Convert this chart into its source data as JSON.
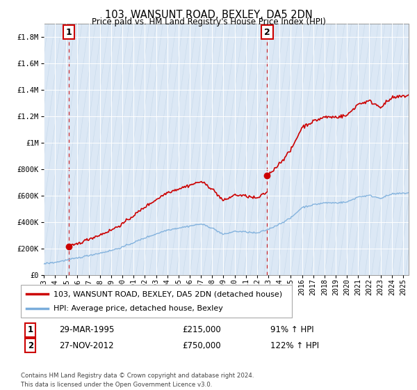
{
  "title": "103, WANSUNT ROAD, BEXLEY, DA5 2DN",
  "subtitle": "Price paid vs. HM Land Registry's House Price Index (HPI)",
  "legend_line1": "103, WANSUNT ROAD, BEXLEY, DA5 2DN (detached house)",
  "legend_line2": "HPI: Average price, detached house, Bexley",
  "ann1_label": "1",
  "ann1_date": "29-MAR-1995",
  "ann1_price": "£215,000",
  "ann1_hpi": "91% ↑ HPI",
  "ann1_x": 1995.23,
  "ann1_y": 215000,
  "ann2_label": "2",
  "ann2_date": "27-NOV-2012",
  "ann2_price": "£750,000",
  "ann2_hpi": "122% ↑ HPI",
  "ann2_x": 2012.9,
  "ann2_y": 750000,
  "red_color": "#cc0000",
  "blue_color": "#7aaddb",
  "bg_color": "#dce8f5",
  "hatch_color": "#c5d8ea",
  "grid_color": "#b0c4d8",
  "ylim_max": 1900000,
  "ylim_min": 0,
  "xlim_min": 1993.0,
  "xlim_max": 2025.5,
  "yticks": [
    0,
    200000,
    400000,
    600000,
    800000,
    1000000,
    1200000,
    1400000,
    1600000,
    1800000
  ],
  "ytick_labels": [
    "£0",
    "£200K",
    "£400K",
    "£600K",
    "£800K",
    "£1M",
    "£1.2M",
    "£1.4M",
    "£1.6M",
    "£1.8M"
  ],
  "footnote1": "Contains HM Land Registry data © Crown copyright and database right 2024.",
  "footnote2": "This data is licensed under the Open Government Licence v3.0."
}
